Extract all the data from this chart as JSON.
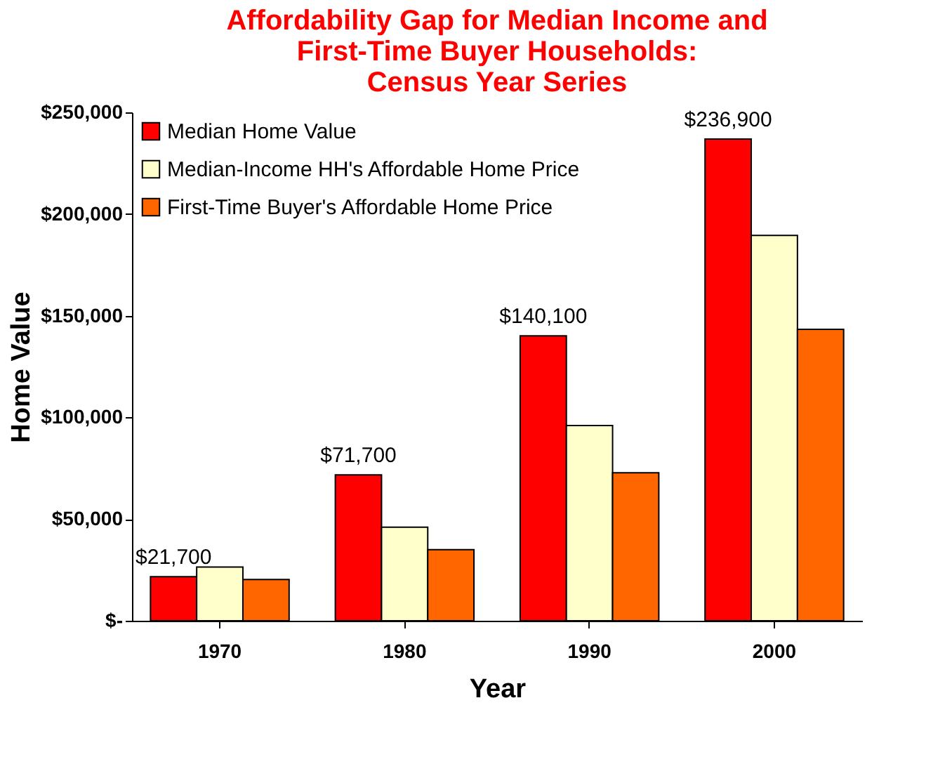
{
  "chart_data": {
    "type": "bar",
    "title": [
      "Affordability Gap for Median Income and",
      "First-Time Buyer Households:",
      "Census Year Series"
    ],
    "xlabel": "Year",
    "ylabel": "Home Value",
    "categories": [
      "1970",
      "1980",
      "1990",
      "2000"
    ],
    "series": [
      {
        "name": "Median Home Value",
        "color": "#ff0000",
        "values": [
          21700,
          71700,
          140100,
          236900
        ],
        "value_labels": [
          "$21,700",
          "$71,700",
          "$140,100",
          "$236,900"
        ]
      },
      {
        "name": "Median-Income HH's Affordable Home Price",
        "color": "#ffffcc",
        "values": [
          26400,
          46000,
          96000,
          189500
        ]
      },
      {
        "name": "First-Time Buyer's Affordable Home Price",
        "color": "#ff6600",
        "values": [
          20300,
          35000,
          72800,
          143300
        ]
      }
    ],
    "ylim": [
      0,
      250000
    ],
    "yticks": [
      {
        "value": 0,
        "label": "$-"
      },
      {
        "value": 50000,
        "label": "$50,000"
      },
      {
        "value": 100000,
        "label": "$100,000"
      },
      {
        "value": 150000,
        "label": "$150,000"
      },
      {
        "value": 200000,
        "label": "$200,000"
      },
      {
        "value": 250000,
        "label": "$250,000"
      }
    ],
    "grid": false,
    "legend": "top left"
  }
}
